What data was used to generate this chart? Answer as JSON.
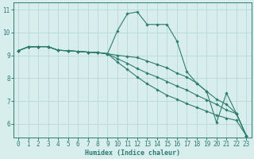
{
  "xlabel": "Humidex (Indice chaleur)",
  "xlim": [
    -0.5,
    23.5
  ],
  "ylim": [
    5.4,
    11.3
  ],
  "yticks": [
    6,
    7,
    8,
    9,
    10,
    11
  ],
  "xticks": [
    0,
    1,
    2,
    3,
    4,
    5,
    6,
    7,
    8,
    9,
    10,
    11,
    12,
    13,
    14,
    15,
    16,
    17,
    18,
    19,
    20,
    21,
    22,
    23
  ],
  "bg_color": "#d8eeed",
  "grid_color": "#b8d8d4",
  "line_color": "#2e7d6e",
  "lines": [
    {
      "x": [
        0,
        1,
        2,
        3,
        4,
        5,
        6,
        7,
        8,
        9,
        10,
        11,
        12,
        13,
        14,
        15,
        16,
        17,
        18,
        19,
        20,
        21,
        22,
        23
      ],
      "y": [
        9.2,
        9.37,
        9.38,
        9.38,
        9.22,
        9.2,
        9.17,
        9.14,
        9.12,
        9.07,
        10.08,
        10.82,
        10.9,
        10.35,
        10.35,
        10.35,
        9.62,
        8.28,
        7.78,
        7.42,
        6.05,
        7.35,
        6.45,
        5.48
      ]
    },
    {
      "x": [
        0,
        1,
        2,
        3,
        4,
        5,
        6,
        7,
        8,
        9,
        10,
        11,
        12,
        13,
        14,
        15,
        16,
        17,
        18,
        19,
        20,
        21,
        22,
        23
      ],
      "y": [
        9.2,
        9.37,
        9.38,
        9.38,
        9.22,
        9.2,
        9.17,
        9.14,
        9.12,
        9.07,
        9.0,
        8.95,
        8.9,
        8.75,
        8.6,
        8.45,
        8.22,
        8.05,
        7.78,
        7.42,
        7.08,
        6.85,
        6.45,
        5.48
      ]
    },
    {
      "x": [
        0,
        1,
        2,
        3,
        4,
        5,
        6,
        7,
        8,
        9,
        10,
        11,
        12,
        13,
        14,
        15,
        16,
        17,
        18,
        19,
        20,
        21,
        22,
        23
      ],
      "y": [
        9.2,
        9.37,
        9.38,
        9.38,
        9.22,
        9.2,
        9.17,
        9.14,
        9.12,
        9.07,
        8.85,
        8.65,
        8.42,
        8.22,
        8.05,
        7.85,
        7.65,
        7.48,
        7.25,
        7.05,
        6.85,
        6.6,
        6.45,
        5.48
      ]
    },
    {
      "x": [
        0,
        1,
        2,
        3,
        4,
        5,
        6,
        7,
        8,
        9,
        10,
        11,
        12,
        13,
        14,
        15,
        16,
        17,
        18,
        19,
        20,
        21,
        22,
        23
      ],
      "y": [
        9.2,
        9.37,
        9.38,
        9.38,
        9.22,
        9.2,
        9.17,
        9.14,
        9.12,
        9.07,
        8.7,
        8.38,
        8.05,
        7.75,
        7.5,
        7.25,
        7.08,
        6.88,
        6.72,
        6.55,
        6.38,
        6.25,
        6.15,
        5.48
      ]
    }
  ]
}
